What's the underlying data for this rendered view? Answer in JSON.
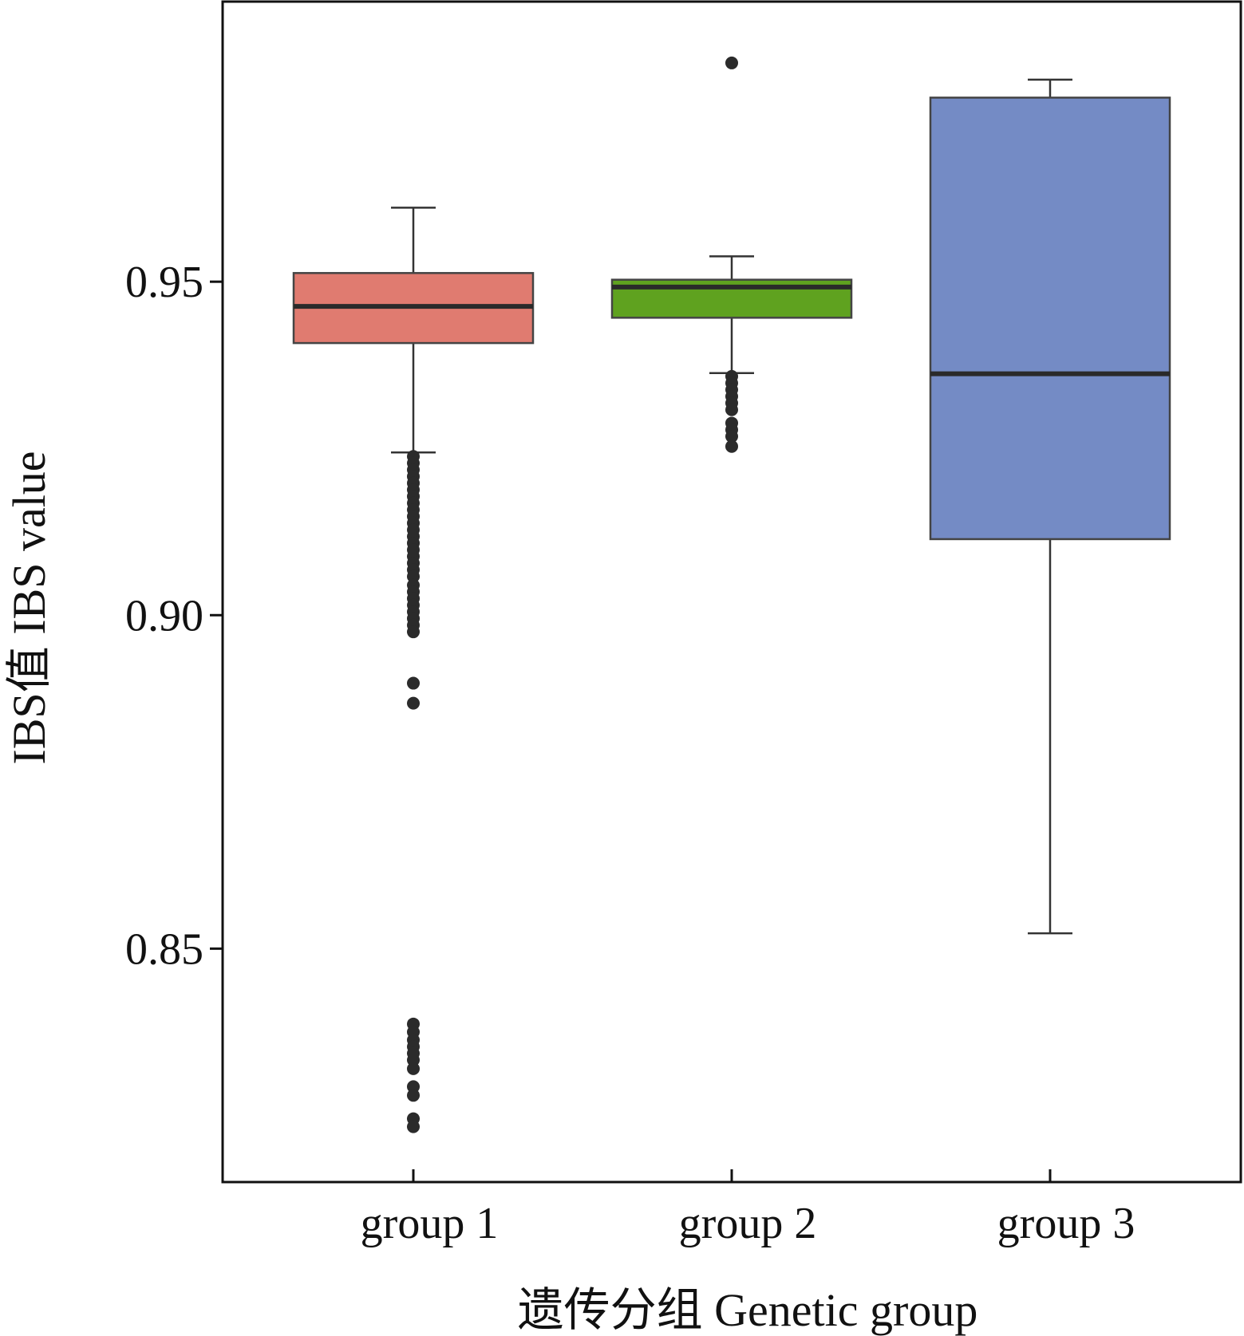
{
  "chart_data": {
    "type": "box",
    "title": "",
    "xlabel": "遗传分组 Genetic group",
    "ylabel": "IBS值 IBS value",
    "ylim": [
      0.815,
      0.992
    ],
    "y_ticks": [
      0.85,
      0.9,
      0.95
    ],
    "y_tick_labels": [
      "0.85",
      "0.90",
      "0.95"
    ],
    "grid": false,
    "legend": "none",
    "categories": [
      "group 1",
      "group 2",
      "group 3"
    ],
    "boxes": [
      {
        "category": "group 1",
        "color": "#e07b70",
        "whisker_low": 0.9244,
        "q1": 0.9408,
        "median": 0.9463,
        "q3": 0.9513,
        "whisker_high": 0.9611,
        "outliers": [
          0.9238,
          0.9228,
          0.9218,
          0.9208,
          0.9198,
          0.9188,
          0.9178,
          0.9168,
          0.9158,
          0.9148,
          0.9138,
          0.9128,
          0.9118,
          0.9108,
          0.9098,
          0.9088,
          0.9078,
          0.9068,
          0.9058,
          0.9045,
          0.9035,
          0.9025,
          0.9015,
          0.9005,
          0.8995,
          0.8985,
          0.8975,
          0.8898,
          0.8868,
          0.8387,
          0.8375,
          0.8363,
          0.8353,
          0.8343,
          0.8333,
          0.832,
          0.8293,
          0.828,
          0.8245,
          0.8233
        ]
      },
      {
        "category": "group 2",
        "color": "#5fa21f",
        "whisker_low": 0.9363,
        "q1": 0.9446,
        "median": 0.9492,
        "q3": 0.9503,
        "whisker_high": 0.9538,
        "outliers": [
          0.9828,
          0.9358,
          0.9348,
          0.9338,
          0.9328,
          0.9318,
          0.9308,
          0.9288,
          0.9278,
          0.9268,
          0.9253
        ]
      },
      {
        "category": "group 3",
        "color": "#748bc5",
        "whisker_low": 0.8523,
        "q1": 0.9114,
        "median": 0.9362,
        "q3": 0.9776,
        "whisker_high": 0.9803,
        "outliers": []
      }
    ]
  }
}
